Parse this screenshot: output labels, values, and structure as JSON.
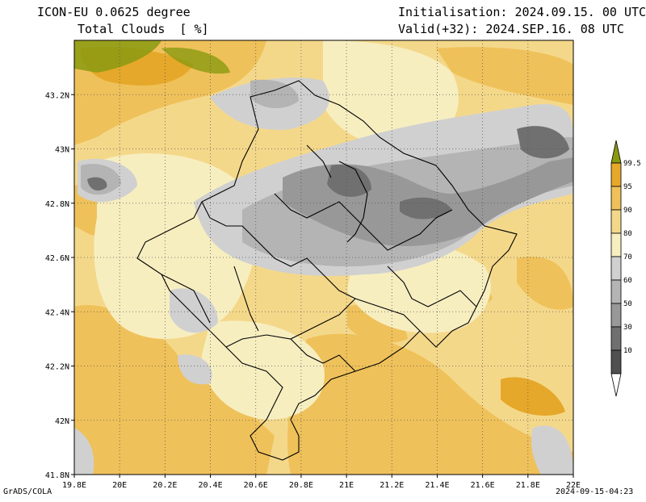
{
  "header": {
    "model": "ICON-EU 0.0625 degree",
    "variable": "Total Clouds  [ %]",
    "initialisation": "Initialisation: 2024.09.15. 00 UTC",
    "valid": "Valid(+32): 2024.SEP.16. 08 UTC"
  },
  "map": {
    "lon_range": [
      19.8,
      22.0
    ],
    "lat_range": [
      41.8,
      43.4
    ],
    "lon_ticks": [
      "19.8E",
      "20E",
      "20.2E",
      "20.4E",
      "20.6E",
      "20.8E",
      "21E",
      "21.2E",
      "21.4E",
      "21.6E",
      "21.8E",
      "22E"
    ],
    "lat_ticks": [
      "41.8N",
      "42N",
      "42.2N",
      "42.4N",
      "42.6N",
      "42.8N",
      "43N",
      "43.2N"
    ],
    "grid": "dotted"
  },
  "legend": {
    "levels": [
      "99.5",
      "95",
      "90",
      "80",
      "70",
      "60",
      "50",
      "30",
      "10"
    ],
    "colors": [
      "#8a9a10",
      "#e6a82a",
      "#efc15a",
      "#f4d88a",
      "#f7eec0",
      "#d0d0d0",
      "#b4b4b4",
      "#989898",
      "#707070",
      "#505050",
      "#ffffff"
    ]
  },
  "footer": {
    "left": "GrADS/COLA",
    "right": "2024-09-15-04:23"
  }
}
